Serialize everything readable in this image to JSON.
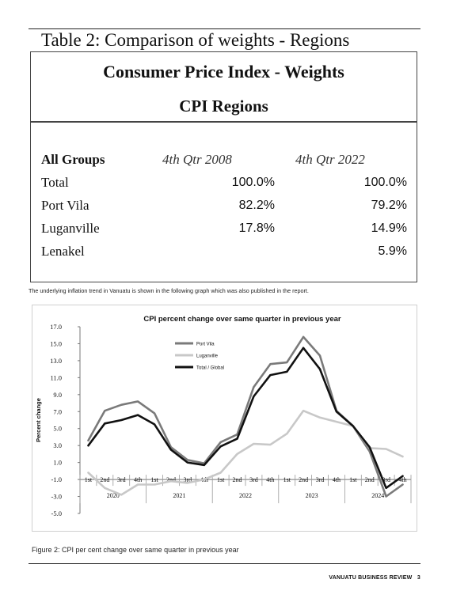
{
  "table": {
    "title": "Table 2: Comparison of weights - Regions",
    "heading1": "Consumer Price Index - Weights",
    "heading2": "CPI Regions",
    "col_header_label": "All Groups",
    "col1_header": "4th Qtr 2008",
    "col2_header": "4th Qtr 2022",
    "rows": [
      {
        "label": "Total",
        "v2008": "100.0%",
        "v2022": "100.0%"
      },
      {
        "label": "Port Vila",
        "v2008": "82.2%",
        "v2022": "79.2%"
      },
      {
        "label": "Luganville",
        "v2008": "17.8%",
        "v2022": "14.9%"
      },
      {
        "label": "Lenakel",
        "v2008": "",
        "v2022": "5.9%"
      }
    ]
  },
  "intro_text": "The underlying inflation trend in Vanuatu is shown in the following graph which was also published in the report.",
  "chart_data": {
    "type": "line",
    "title": "CPI percent change over same quarter in previous year",
    "ylabel": "Percent change",
    "ylim": [
      -5,
      17
    ],
    "yticks": [
      "17.0",
      "15.0",
      "13.0",
      "11.0",
      "9.0",
      "7.0",
      "5.0",
      "3.0",
      "1.0",
      "-1.0",
      "-3.0",
      "-5.0"
    ],
    "quarters": [
      "1st",
      "2nd",
      "3rd",
      "4th",
      "1st",
      "2nd",
      "3rd",
      "4th",
      "1st",
      "2nd",
      "3rd",
      "4th",
      "1st",
      "2nd",
      "3rd",
      "4th",
      "1st",
      "2nd",
      "3rd",
      "4th"
    ],
    "years": [
      "2020",
      "2021",
      "2022",
      "2023",
      "2024"
    ],
    "grid": false,
    "legend_position": "top-center",
    "series": [
      {
        "name": "Port Vila",
        "color": "#7a7a7a",
        "values": [
          3.6,
          7.1,
          7.8,
          8.2,
          6.8,
          2.8,
          1.3,
          0.9,
          3.4,
          4.3,
          9.9,
          12.6,
          12.8,
          15.8,
          13.6,
          7.1,
          5.3,
          2.3,
          -3.0,
          -1.6
        ]
      },
      {
        "name": "Luganville",
        "color": "#c8c8c8",
        "values": [
          -0.2,
          -2.0,
          -2.8,
          -1.6,
          -1.6,
          -1.2,
          -1.4,
          -1.0,
          -0.2,
          2.0,
          3.2,
          3.1,
          4.4,
          7.1,
          6.3,
          5.8,
          5.3,
          2.7,
          2.6,
          1.7
        ]
      },
      {
        "name": "Total / Global",
        "color": "#111111",
        "values": [
          3.0,
          5.6,
          6.0,
          6.6,
          5.5,
          2.5,
          1.0,
          0.7,
          2.9,
          3.8,
          8.8,
          11.3,
          11.7,
          14.5,
          12.0,
          7.0,
          5.3,
          2.8,
          -2.0,
          -0.6
        ]
      }
    ]
  },
  "caption": "Figure 2: CPI per cent change over same quarter in previous year",
  "footer": {
    "publication": "VANUATU BUSINESS REVIEW",
    "page": "3"
  }
}
